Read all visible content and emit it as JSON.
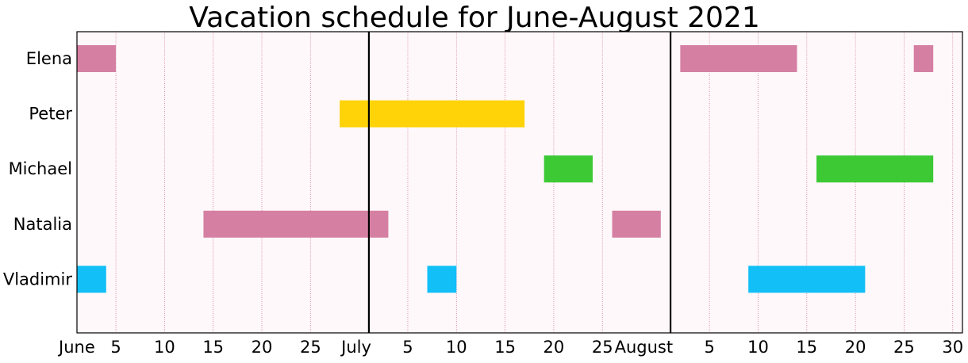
{
  "chart_data": {
    "type": "gantt",
    "title": "Vacation schedule for June-August 2021",
    "xlabel": "",
    "ylabel": "",
    "x_unit": "date",
    "xlim": [
      "2021-06-01",
      "2021-08-31"
    ],
    "grid": "vertical",
    "categories": [
      "Elena",
      "Peter",
      "Michael",
      "Natalia",
      "Vladimir"
    ],
    "month_boundaries": [
      "2021-07-01",
      "2021-08-01"
    ],
    "x_ticks": [
      {
        "date": "2021-06-01",
        "label": "June"
      },
      {
        "date": "2021-06-05",
        "label": "5"
      },
      {
        "date": "2021-06-10",
        "label": "10"
      },
      {
        "date": "2021-06-15",
        "label": "15"
      },
      {
        "date": "2021-06-20",
        "label": "20"
      },
      {
        "date": "2021-06-25",
        "label": "25"
      },
      {
        "date": "2021-07-01",
        "label": "July"
      },
      {
        "date": "2021-07-05",
        "label": "5"
      },
      {
        "date": "2021-07-10",
        "label": "10"
      },
      {
        "date": "2021-07-15",
        "label": "15"
      },
      {
        "date": "2021-07-20",
        "label": "20"
      },
      {
        "date": "2021-07-25",
        "label": "25"
      },
      {
        "date": "2021-08-01",
        "label": "August"
      },
      {
        "date": "2021-08-05",
        "label": "5"
      },
      {
        "date": "2021-08-10",
        "label": "10"
      },
      {
        "date": "2021-08-15",
        "label": "15"
      },
      {
        "date": "2021-08-20",
        "label": "20"
      },
      {
        "date": "2021-08-25",
        "label": "25"
      },
      {
        "date": "2021-08-30",
        "label": "30"
      }
    ],
    "vacations": [
      {
        "person": "Elena",
        "start": "2021-06-01",
        "end": "2021-06-05",
        "color": "#d580a3"
      },
      {
        "person": "Elena",
        "start": "2021-08-02",
        "end": "2021-08-14",
        "color": "#d580a3"
      },
      {
        "person": "Elena",
        "start": "2021-08-26",
        "end": "2021-08-28",
        "color": "#d580a3"
      },
      {
        "person": "Peter",
        "start": "2021-06-28",
        "end": "2021-07-17",
        "color": "#ffd308"
      },
      {
        "person": "Michael",
        "start": "2021-07-19",
        "end": "2021-07-24",
        "color": "#3cc934"
      },
      {
        "person": "Michael",
        "start": "2021-08-16",
        "end": "2021-08-28",
        "color": "#3cc934"
      },
      {
        "person": "Natalia",
        "start": "2021-06-14",
        "end": "2021-07-03",
        "color": "#d580a3"
      },
      {
        "person": "Natalia",
        "start": "2021-07-26",
        "end": "2021-07-31",
        "color": "#d580a3"
      },
      {
        "person": "Vladimir",
        "start": "2021-06-01",
        "end": "2021-06-04",
        "color": "#12bff7"
      },
      {
        "person": "Vladimir",
        "start": "2021-07-07",
        "end": "2021-07-10",
        "color": "#12bff7"
      },
      {
        "person": "Vladimir",
        "start": "2021-08-09",
        "end": "2021-08-21",
        "color": "#12bff7"
      }
    ],
    "colors": {
      "background": "#fff8fa",
      "gridline": "#c97a9c",
      "month_line": "#000000"
    }
  }
}
